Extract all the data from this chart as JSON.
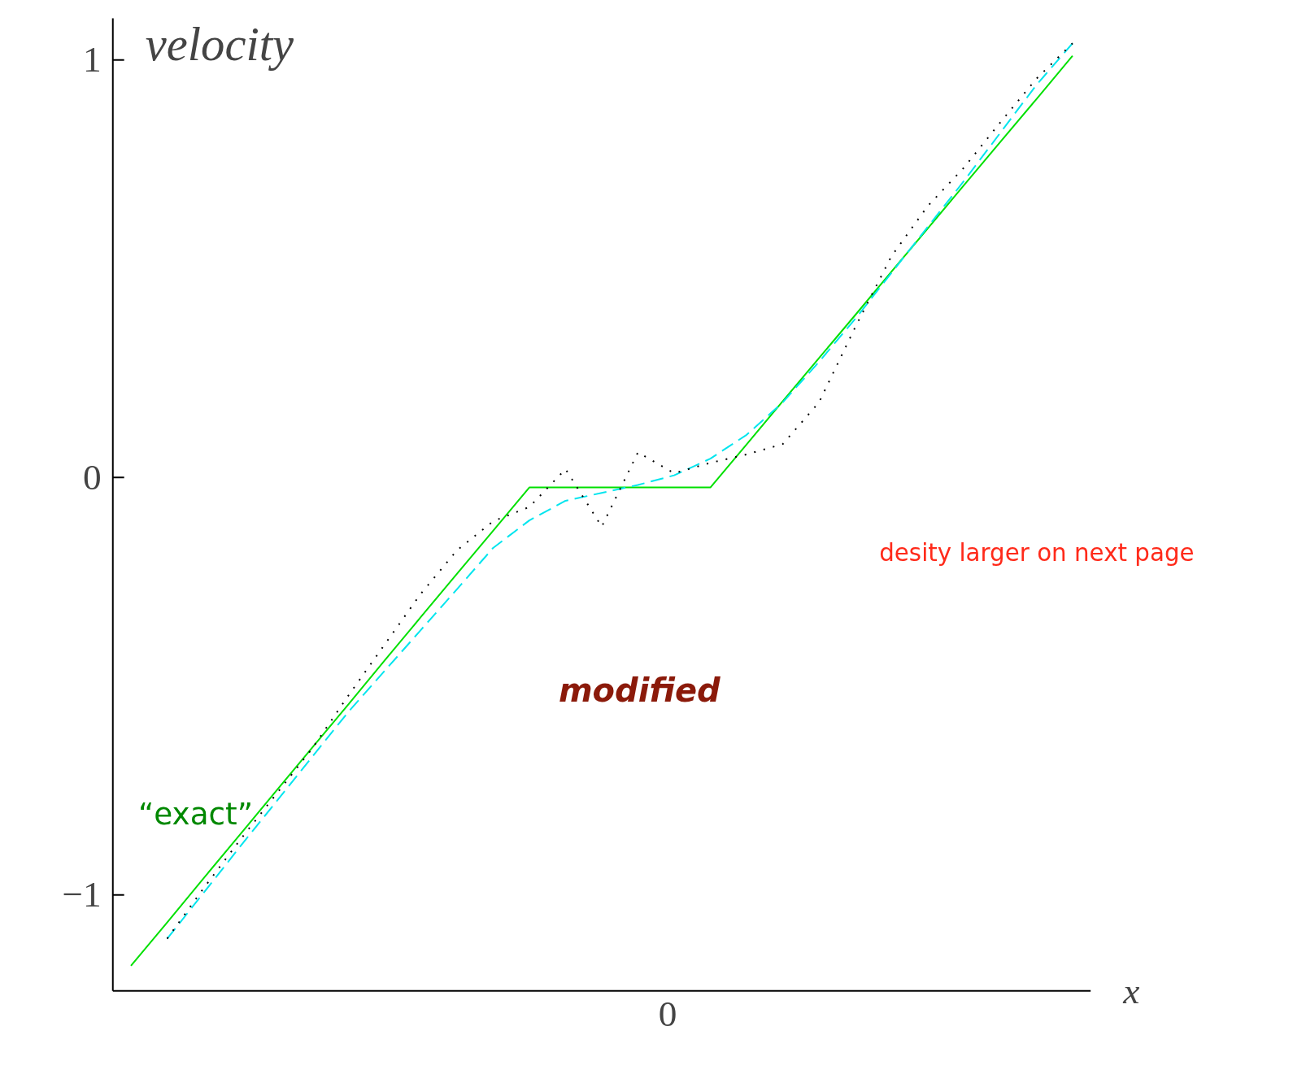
{
  "chart_data": {
    "type": "line",
    "ylabel": "velocity",
    "xlabel": "x",
    "categories": [
      null,
      null,
      null,
      null,
      null,
      null,
      null,
      null,
      null,
      null,
      null,
      null,
      null,
      null,
      null,
      null,
      null,
      null,
      null,
      null,
      null,
      null,
      null,
      null,
      null,
      null,
      null
    ],
    "ylim": [
      -1.23,
      1.1
    ],
    "yticks": [
      {
        "value": -1,
        "label": "−1"
      },
      0,
      1
    ],
    "grid": false,
    "legend": false,
    "series": [
      {
        "name": "“exact”",
        "color": "#00e000",
        "line_style": "solid",
        "values": [
          -1.17,
          -1.066,
          -0.961,
          -0.857,
          -0.752,
          -0.648,
          -0.544,
          -0.439,
          -0.335,
          -0.231,
          -0.128,
          -0.024,
          -0.024,
          -0.024,
          -0.024,
          -0.024,
          -0.024,
          0.079,
          0.183,
          0.286,
          0.389,
          0.493,
          0.596,
          0.7,
          0.803,
          0.906,
          1.01
        ]
      },
      {
        "color": "#00e5ee",
        "line_style": "dashed",
        "values": [
          null,
          -1.105,
          -0.996,
          -0.886,
          -0.778,
          -0.67,
          -0.562,
          -0.464,
          -0.366,
          -0.268,
          -0.169,
          -0.103,
          -0.056,
          -0.037,
          -0.018,
          0.005,
          0.045,
          0.102,
          0.18,
          0.277,
          0.38,
          0.49,
          0.6,
          0.71,
          0.825,
          0.94,
          1.04
        ]
      },
      {
        "color": "#000000",
        "line_style": "dotted",
        "values": [
          null,
          -1.105,
          -0.985,
          -0.87,
          -0.76,
          -0.65,
          -0.523,
          -0.401,
          -0.279,
          -0.175,
          -0.105,
          -0.071,
          0.02,
          -0.118,
          0.06,
          0.01,
          0.035,
          0.055,
          0.08,
          0.18,
          0.36,
          0.53,
          0.65,
          0.742,
          0.85,
          0.955,
          1.04
        ]
      }
    ],
    "annotations": [
      "0",
      "modified",
      "desity larger on next page"
    ]
  }
}
